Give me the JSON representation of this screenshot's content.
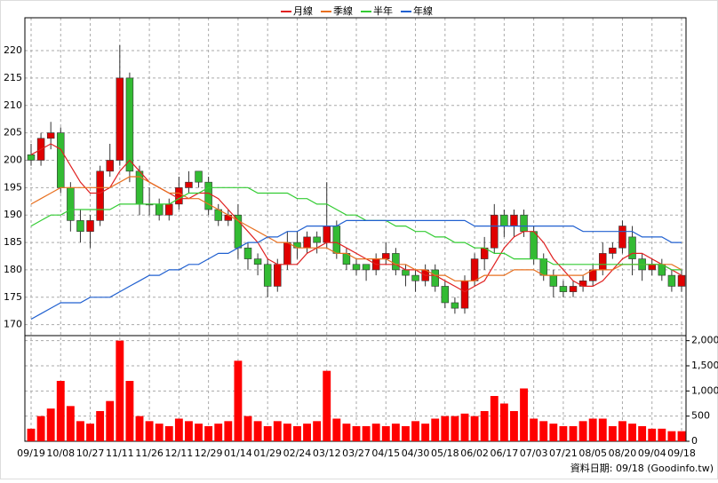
{
  "chart_data": {
    "type": "candlestick",
    "categories": [
      "09/19",
      null,
      null,
      "10/08",
      null,
      null,
      "10/27",
      null,
      null,
      "11/11",
      null,
      null,
      "11/26",
      null,
      null,
      "12/11",
      null,
      null,
      "12/29",
      null,
      null,
      "01/14",
      null,
      null,
      "01/29",
      null,
      null,
      "02/24",
      null,
      null,
      "03/12",
      null,
      null,
      "03/27",
      null,
      null,
      "04/15",
      null,
      null,
      "04/30",
      null,
      null,
      "05/18",
      null,
      null,
      "06/02",
      null,
      null,
      "06/17",
      null,
      null,
      "07/03",
      null,
      null,
      "07/21",
      null,
      null,
      "08/05",
      null,
      null,
      "08/20",
      null,
      null,
      "09/04",
      null,
      null,
      "09/18"
    ],
    "open": [
      201,
      200,
      204,
      205,
      195,
      189,
      187,
      189,
      198,
      200,
      215,
      198,
      192,
      192,
      190,
      192,
      195,
      198,
      196,
      191,
      189,
      190,
      184,
      182,
      181,
      177,
      181,
      185,
      184,
      186,
      185,
      188,
      183,
      181,
      181,
      180,
      182,
      183,
      180,
      179,
      178,
      180,
      177,
      174,
      173,
      178,
      182,
      184,
      190,
      188,
      190,
      187,
      182,
      179,
      177,
      176,
      177,
      178,
      180,
      183,
      184,
      186,
      182,
      180,
      181,
      179,
      177
    ],
    "high": [
      203,
      205,
      207,
      206,
      196,
      191,
      190,
      199,
      203,
      221,
      216,
      199,
      195,
      193,
      193,
      197,
      198,
      198,
      197,
      192,
      191,
      192,
      185,
      183,
      182,
      182,
      187,
      187,
      187,
      187,
      196,
      189,
      184,
      182,
      181,
      183,
      185,
      184,
      181,
      180,
      181,
      181,
      178,
      175,
      179,
      183,
      186,
      192,
      191,
      191,
      191,
      188,
      183,
      180,
      178,
      178,
      179,
      181,
      185,
      185,
      189,
      188,
      183,
      182,
      182,
      180,
      180
    ],
    "low": [
      199,
      199,
      202,
      194,
      187,
      185,
      184,
      188,
      197,
      199,
      196,
      190,
      190,
      189,
      189,
      191,
      194,
      195,
      190,
      188,
      188,
      182,
      180,
      179,
      175,
      176,
      180,
      182,
      183,
      183,
      184,
      182,
      180,
      179,
      178,
      179,
      181,
      179,
      177,
      176,
      177,
      176,
      173,
      172,
      172,
      177,
      180,
      183,
      186,
      186,
      186,
      181,
      178,
      175,
      175,
      175,
      176,
      177,
      179,
      182,
      183,
      179,
      178,
      179,
      178,
      176,
      176
    ],
    "close": [
      200,
      204,
      205,
      195,
      189,
      187,
      189,
      198,
      200,
      215,
      198,
      192,
      192,
      190,
      192,
      195,
      196,
      196,
      191,
      189,
      190,
      184,
      182,
      181,
      177,
      181,
      185,
      184,
      186,
      185,
      188,
      183,
      181,
      180,
      180,
      182,
      183,
      180,
      179,
      178,
      180,
      177,
      174,
      173,
      178,
      182,
      184,
      190,
      188,
      190,
      187,
      182,
      179,
      177,
      176,
      177,
      178,
      180,
      183,
      184,
      188,
      182,
      180,
      181,
      179,
      177,
      179
    ],
    "up_color": "#e00000",
    "down_color": "#33bb33",
    "ylim": [
      168,
      226
    ],
    "yticks": [
      170,
      175,
      180,
      185,
      190,
      195,
      200,
      205,
      210,
      215,
      220
    ],
    "grid": true,
    "series": [
      {
        "name": "月線",
        "color": "#e02020",
        "values": [
          201,
          202,
          203,
          202,
          199,
          196,
          194,
          194,
          195,
          198,
          200,
          198,
          196,
          195,
          194,
          193,
          193,
          194,
          194,
          193,
          191,
          189,
          187,
          185,
          182,
          181,
          181,
          181,
          183,
          184,
          185,
          185,
          184,
          183,
          182,
          181,
          181,
          181,
          180,
          180,
          179,
          179,
          178,
          177,
          176,
          177,
          178,
          181,
          184,
          186,
          187,
          187,
          185,
          182,
          180,
          178,
          177,
          177,
          178,
          180,
          182,
          183,
          183,
          182,
          181,
          180,
          179
        ]
      },
      {
        "name": "季線",
        "color": "#e87020",
        "values": [
          192,
          193,
          194,
          195,
          195,
          195,
          195,
          195,
          195,
          196,
          197,
          197,
          196,
          195,
          194,
          194,
          193,
          193,
          192,
          191,
          190,
          189,
          188,
          187,
          186,
          185,
          185,
          184,
          184,
          184,
          184,
          183,
          183,
          182,
          182,
          182,
          182,
          181,
          181,
          180,
          180,
          179,
          179,
          178,
          178,
          178,
          179,
          179,
          179,
          180,
          180,
          180,
          179,
          179,
          179,
          179,
          179,
          180,
          180,
          180,
          181,
          181,
          181,
          181,
          181,
          181,
          180
        ]
      },
      {
        "name": "半年",
        "color": "#33cc33",
        "values": [
          188,
          189,
          190,
          190,
          191,
          191,
          191,
          191,
          191,
          192,
          192,
          192,
          192,
          192,
          192,
          193,
          194,
          194,
          195,
          195,
          195,
          195,
          195,
          194,
          194,
          194,
          194,
          193,
          193,
          192,
          192,
          191,
          190,
          190,
          189,
          189,
          189,
          188,
          188,
          187,
          187,
          186,
          186,
          185,
          185,
          184,
          184,
          183,
          183,
          182,
          182,
          182,
          182,
          181,
          181,
          181,
          181,
          181,
          181,
          181,
          181,
          181,
          181,
          181,
          181,
          180,
          180
        ]
      },
      {
        "name": "年線",
        "color": "#2060d0",
        "values": [
          171,
          172,
          173,
          174,
          174,
          174,
          175,
          175,
          175,
          176,
          177,
          178,
          179,
          179,
          180,
          180,
          181,
          181,
          182,
          183,
          183,
          184,
          185,
          185,
          186,
          186,
          187,
          187,
          188,
          188,
          188,
          188,
          189,
          189,
          189,
          189,
          189,
          189,
          189,
          189,
          189,
          189,
          189,
          189,
          189,
          188,
          188,
          188,
          188,
          188,
          188,
          188,
          188,
          188,
          188,
          188,
          187,
          187,
          187,
          187,
          187,
          187,
          186,
          186,
          186,
          185,
          185
        ]
      }
    ],
    "volume": {
      "color": "#ff0000",
      "values": [
        250,
        500,
        650,
        1200,
        700,
        400,
        350,
        600,
        800,
        2000,
        1200,
        500,
        400,
        350,
        300,
        450,
        400,
        350,
        300,
        350,
        400,
        1600,
        500,
        400,
        300,
        400,
        350,
        300,
        350,
        400,
        1400,
        450,
        350,
        300,
        300,
        350,
        300,
        350,
        300,
        400,
        350,
        450,
        500,
        500,
        550,
        500,
        600,
        900,
        750,
        600,
        1050,
        450,
        400,
        350,
        300,
        300,
        400,
        450,
        450,
        300,
        400,
        350,
        300,
        250,
        250,
        200,
        200
      ],
      "ylim": [
        0,
        2100
      ],
      "yticks": [
        0,
        500,
        {
          "value": 1000,
          "label": "1,000"
        },
        {
          "value": 1500,
          "label": "1,500"
        },
        {
          "value": 2000,
          "label": "2,000"
        }
      ]
    },
    "footnote": "資料日期: 09/18 (Goodinfo.tw)"
  }
}
